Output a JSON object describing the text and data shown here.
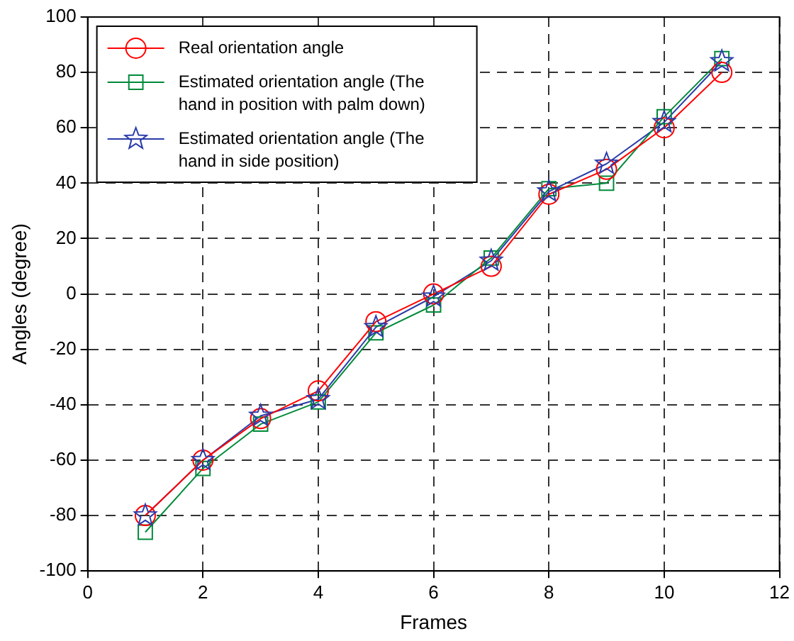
{
  "chart_data": {
    "type": "line",
    "xlabel": "Frames",
    "ylabel": "Angles (degree)",
    "x": [
      1,
      2,
      3,
      4,
      5,
      6,
      7,
      8,
      9,
      10,
      11
    ],
    "xlim": [
      0,
      12
    ],
    "xticks": [
      0,
      2,
      4,
      6,
      8,
      10,
      12
    ],
    "ylim": [
      -100,
      100
    ],
    "yticks": [
      -100,
      -80,
      -60,
      -40,
      -20,
      0,
      20,
      40,
      60,
      80,
      100
    ],
    "grid": true,
    "legend": "top left",
    "line_style": "solid",
    "series": [
      {
        "name": "Real orientation angle",
        "color": "#ff0000",
        "marker": "circle",
        "values": [
          -80,
          -60,
          -45,
          -35,
          -10,
          0,
          10,
          36,
          45,
          60,
          80
        ]
      },
      {
        "name": "Estimated orientation angle (The hand in position with palm down)",
        "color": "#008a3a",
        "marker": "square",
        "values": [
          -86,
          -63,
          -47,
          -39,
          -14,
          -4,
          13,
          38,
          40,
          64,
          85
        ]
      },
      {
        "name": "Estimated orientation angle (The hand in side position)",
        "color": "#2a3caa",
        "marker": "star",
        "values": [
          -80,
          -60,
          -44,
          -38,
          -12,
          -1,
          12,
          37,
          47,
          62,
          84
        ]
      }
    ]
  }
}
